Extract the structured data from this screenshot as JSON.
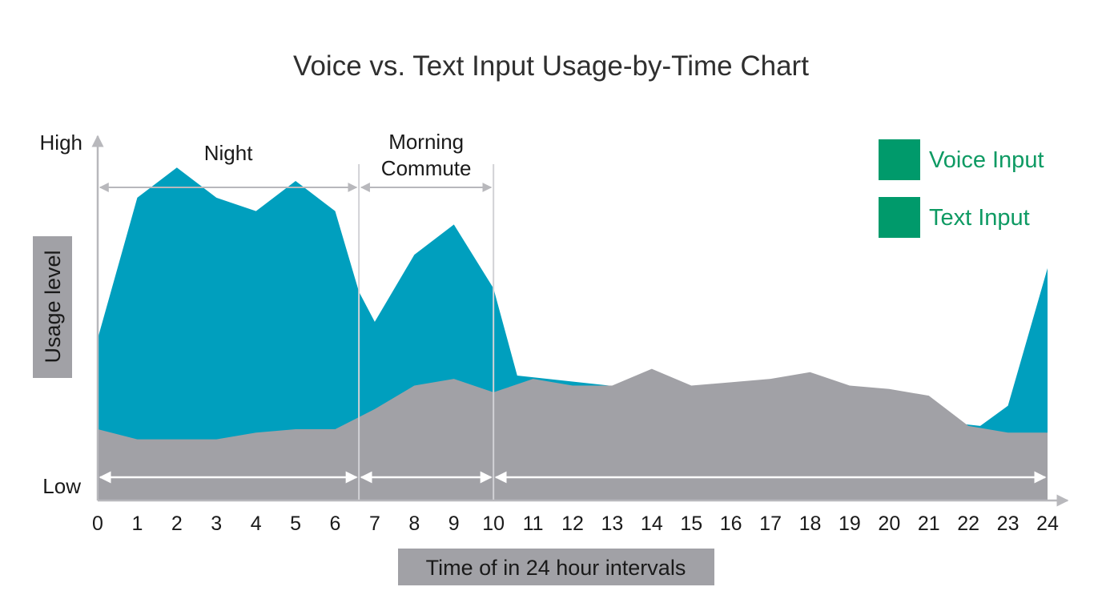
{
  "chart_data": {
    "type": "area",
    "title": "Voice vs. Text Input Usage-by-Time Chart",
    "xlabel": "Time of in 24 hour intervals",
    "ylabel": "Usage level",
    "y_ticks": {
      "high": "High",
      "low": "Low"
    },
    "x_ticks": [
      "0",
      "1",
      "2",
      "3",
      "4",
      "5",
      "6",
      "7",
      "8",
      "9",
      "10",
      "11",
      "12",
      "13",
      "14",
      "15",
      "16",
      "17",
      "18",
      "19",
      "20",
      "21",
      "22",
      "23",
      "24"
    ],
    "xlim": [
      0,
      24
    ],
    "ylim": [
      0,
      100
    ],
    "series": [
      {
        "name": "Voice Input",
        "color": "#009fbe",
        "x": [
          0,
          1,
          2,
          3,
          4,
          5,
          6,
          6.6,
          7,
          8,
          9,
          10,
          10.6,
          22.3,
          23,
          24
        ],
        "values": [
          48,
          90,
          99,
          90,
          86,
          95,
          86,
          62,
          53,
          73,
          82,
          63,
          37,
          22,
          28,
          69
        ]
      },
      {
        "name": "Text Input",
        "color": "#a1a1a6",
        "x": [
          0,
          1,
          2,
          3,
          4,
          5,
          6,
          7,
          8,
          9,
          10,
          11,
          12,
          13,
          14,
          15,
          16,
          17,
          18,
          19,
          20,
          21,
          22,
          23,
          24
        ],
        "values": [
          21,
          18,
          18,
          18,
          20,
          21,
          21,
          27,
          34,
          36,
          32,
          36,
          34,
          34,
          39,
          34,
          35,
          36,
          38,
          34,
          33,
          31,
          22,
          20,
          20
        ]
      }
    ],
    "legend": {
      "position": "top-right",
      "items": [
        {
          "label": "Voice Input",
          "swatch_color": "#009a6b",
          "text_color": "#0e9a63"
        },
        {
          "label": "Text Input",
          "swatch_color": "#009a6b",
          "text_color": "#0e9a63"
        }
      ]
    },
    "annotations": {
      "periods": [
        {
          "label_lines": [
            "Night"
          ],
          "start": 0,
          "end": 6.6
        },
        {
          "label_lines": [
            "Morning",
            "Commute"
          ],
          "start": 6.6,
          "end": 10
        }
      ],
      "period_dividers": [
        6.6,
        10
      ],
      "bottom_ranges": [
        [
          0,
          6.6
        ],
        [
          6.6,
          10
        ],
        [
          10,
          24
        ]
      ]
    },
    "grid": false
  }
}
